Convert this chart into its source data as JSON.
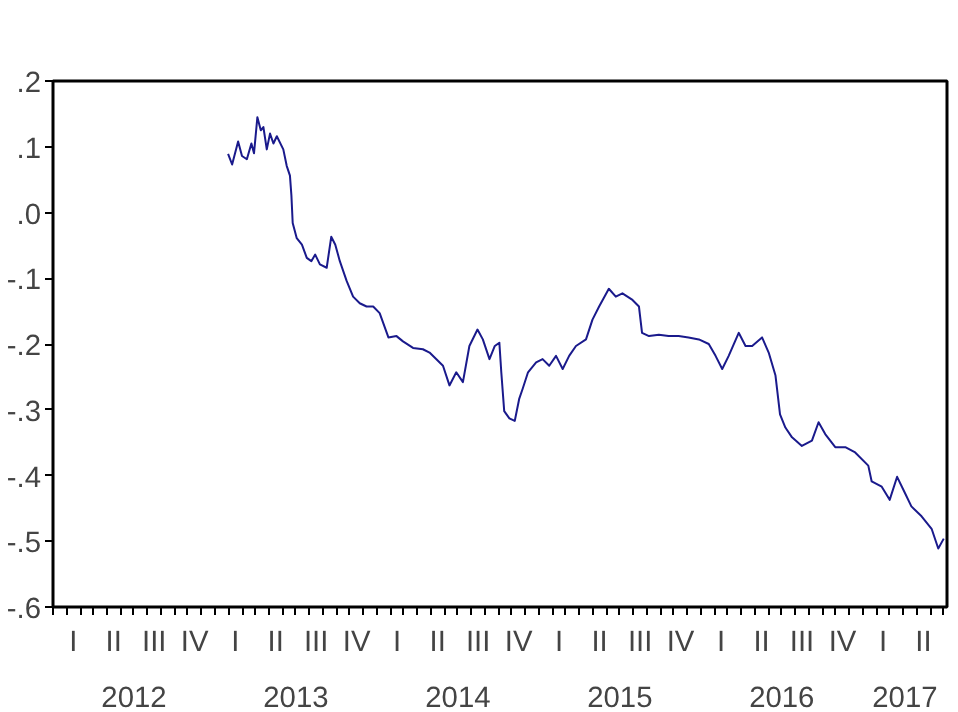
{
  "chart_data": {
    "type": "line",
    "x": [
      2013.081,
      2013.106,
      2013.143,
      2013.167,
      2013.197,
      2013.225,
      2013.241,
      2013.262,
      2013.283,
      2013.299,
      2013.32,
      2013.34,
      2013.361,
      2013.382,
      2013.422,
      2013.443,
      2013.463,
      2013.472,
      2013.48,
      2013.505,
      2013.537,
      2013.567,
      2013.595,
      2013.619,
      2013.648,
      2013.69,
      2013.718,
      2013.743,
      2013.771,
      2013.813,
      2013.853,
      2013.894,
      2013.936,
      2013.977,
      2014.017,
      2014.071,
      2014.121,
      2014.161,
      2014.223,
      2014.284,
      2014.325,
      2014.408,
      2014.448,
      2014.49,
      2014.531,
      2014.571,
      2014.621,
      2014.654,
      2014.695,
      2014.728,
      2014.756,
      2014.768,
      2014.786,
      2014.818,
      2014.851,
      2014.879,
      2014.9,
      2014.933,
      2014.983,
      2015.023,
      2015.064,
      2015.106,
      2015.147,
      2015.187,
      2015.229,
      2015.291,
      2015.331,
      2015.372,
      2015.432,
      2015.475,
      2015.516,
      2015.578,
      2015.618,
      2015.637,
      2015.68,
      2015.741,
      2015.801,
      2015.863,
      2015.924,
      2015.988,
      2016.049,
      2016.091,
      2016.132,
      2016.172,
      2016.234,
      2016.276,
      2016.317,
      2016.378,
      2016.419,
      2016.461,
      2016.489,
      2016.522,
      2016.563,
      2016.624,
      2016.686,
      2016.727,
      2016.768,
      2016.83,
      2016.892,
      2016.953,
      2017.034,
      2017.055,
      2017.117,
      2017.166,
      2017.212,
      2017.261,
      2017.3,
      2017.363,
      2017.425,
      2017.466,
      2017.5
    ],
    "series": [
      {
        "color": "#1a1a8c",
        "values": [
          0.089,
          0.073,
          0.108,
          0.086,
          0.081,
          0.105,
          0.09,
          0.145,
          0.125,
          0.13,
          0.096,
          0.12,
          0.105,
          0.116,
          0.096,
          0.071,
          0.056,
          0.026,
          -0.016,
          -0.039,
          -0.049,
          -0.069,
          -0.074,
          -0.064,
          -0.079,
          -0.084,
          -0.037,
          -0.049,
          -0.074,
          -0.104,
          -0.128,
          -0.138,
          -0.143,
          -0.143,
          -0.153,
          -0.19,
          -0.188,
          -0.196,
          -0.206,
          -0.208,
          -0.213,
          -0.233,
          -0.263,
          -0.243,
          -0.258,
          -0.203,
          -0.178,
          -0.193,
          -0.223,
          -0.203,
          -0.198,
          -0.243,
          -0.302,
          -0.313,
          -0.317,
          -0.283,
          -0.268,
          -0.243,
          -0.228,
          -0.223,
          -0.233,
          -0.218,
          -0.238,
          -0.218,
          -0.203,
          -0.193,
          -0.163,
          -0.143,
          -0.116,
          -0.128,
          -0.123,
          -0.133,
          -0.143,
          -0.183,
          -0.188,
          -0.186,
          -0.188,
          -0.188,
          -0.19,
          -0.193,
          -0.2,
          -0.218,
          -0.238,
          -0.218,
          -0.183,
          -0.203,
          -0.203,
          -0.19,
          -0.213,
          -0.248,
          -0.307,
          -0.327,
          -0.342,
          -0.355,
          -0.347,
          -0.319,
          -0.337,
          -0.357,
          -0.357,
          -0.365,
          -0.385,
          -0.409,
          -0.417,
          -0.437,
          -0.402,
          -0.427,
          -0.447,
          -0.462,
          -0.481,
          -0.511,
          -0.496
        ]
      }
    ],
    "xlim": [
      2012.0,
      2017.52
    ],
    "ylim": [
      -0.6,
      0.2
    ],
    "yticks": [
      {
        "value": 0.2,
        "label": ".2"
      },
      {
        "value": 0.1,
        "label": ".1"
      },
      {
        "value": 0.0,
        "label": ".0"
      },
      {
        "value": -0.1,
        "label": "-.1"
      },
      {
        "value": -0.2,
        "label": "-.2"
      },
      {
        "value": -0.3,
        "label": "-.3"
      },
      {
        "value": -0.4,
        "label": "-.4"
      },
      {
        "value": -0.5,
        "label": "-.5"
      },
      {
        "value": -0.6,
        "label": "-.6"
      }
    ],
    "annotations": [
      "I",
      "II",
      "III",
      "IV",
      "I",
      "II",
      "III",
      "IV",
      "I",
      "II",
      "III",
      "IV",
      "I",
      "II",
      "III",
      "IV",
      "I",
      "II",
      "III",
      "IV",
      "I",
      "II"
    ],
    "xticks": [
      {
        "value": 2012.5,
        "label": "2012"
      },
      {
        "value": 2013.5,
        "label": "2013"
      },
      {
        "value": 2014.5,
        "label": "2014"
      },
      {
        "value": 2015.5,
        "label": "2015"
      },
      {
        "value": 2016.5,
        "label": "2016"
      },
      {
        "value": 2017.26,
        "label": "2017"
      },
      {
        "value": 2012.0,
        "label": null
      },
      {
        "value": 2012.083,
        "label": null
      },
      {
        "value": 2012.167,
        "label": null
      },
      {
        "value": 2012.25,
        "label": null
      },
      {
        "value": 2012.333,
        "label": null
      },
      {
        "value": 2012.417,
        "label": null
      },
      {
        "value": 2012.5,
        "label": null
      },
      {
        "value": 2012.583,
        "label": null
      },
      {
        "value": 2012.667,
        "label": null
      },
      {
        "value": 2012.75,
        "label": null
      },
      {
        "value": 2012.833,
        "label": null
      },
      {
        "value": 2012.917,
        "label": null
      },
      {
        "value": 2013.0,
        "label": null
      },
      {
        "value": 2013.083,
        "label": null
      },
      {
        "value": 2013.167,
        "label": null
      },
      {
        "value": 2013.25,
        "label": null
      },
      {
        "value": 2013.333,
        "label": null
      },
      {
        "value": 2013.417,
        "label": null
      },
      {
        "value": 2013.5,
        "label": null
      },
      {
        "value": 2013.583,
        "label": null
      },
      {
        "value": 2013.667,
        "label": null
      },
      {
        "value": 2013.75,
        "label": null
      },
      {
        "value": 2013.833,
        "label": null
      },
      {
        "value": 2013.917,
        "label": null
      },
      {
        "value": 2014.0,
        "label": null
      },
      {
        "value": 2014.083,
        "label": null
      },
      {
        "value": 2014.167,
        "label": null
      },
      {
        "value": 2014.25,
        "label": null
      },
      {
        "value": 2014.333,
        "label": null
      },
      {
        "value": 2014.417,
        "label": null
      },
      {
        "value": 2014.5,
        "label": null
      },
      {
        "value": 2014.583,
        "label": null
      },
      {
        "value": 2014.667,
        "label": null
      },
      {
        "value": 2014.75,
        "label": null
      },
      {
        "value": 2014.833,
        "label": null
      },
      {
        "value": 2014.917,
        "label": null
      },
      {
        "value": 2015.0,
        "label": null
      },
      {
        "value": 2015.083,
        "label": null
      },
      {
        "value": 2015.167,
        "label": null
      },
      {
        "value": 2015.25,
        "label": null
      },
      {
        "value": 2015.333,
        "label": null
      },
      {
        "value": 2015.417,
        "label": null
      },
      {
        "value": 2015.5,
        "label": null
      },
      {
        "value": 2015.583,
        "label": null
      },
      {
        "value": 2015.667,
        "label": null
      },
      {
        "value": 2015.75,
        "label": null
      },
      {
        "value": 2015.833,
        "label": null
      },
      {
        "value": 2015.917,
        "label": null
      },
      {
        "value": 2016.0,
        "label": null
      },
      {
        "value": 2016.083,
        "label": null
      },
      {
        "value": 2016.167,
        "label": null
      },
      {
        "value": 2016.25,
        "label": null
      },
      {
        "value": 2016.333,
        "label": null
      },
      {
        "value": 2016.417,
        "label": null
      },
      {
        "value": 2016.5,
        "label": null
      },
      {
        "value": 2016.583,
        "label": null
      },
      {
        "value": 2016.667,
        "label": null
      },
      {
        "value": 2016.75,
        "label": null
      },
      {
        "value": 2016.833,
        "label": null
      },
      {
        "value": 2016.917,
        "label": null
      },
      {
        "value": 2017.0,
        "label": null
      },
      {
        "value": 2017.083,
        "label": null
      },
      {
        "value": 2017.167,
        "label": null
      },
      {
        "value": 2017.25,
        "label": null
      },
      {
        "value": 2017.333,
        "label": null
      },
      {
        "value": 2017.417,
        "label": null
      },
      {
        "value": 2017.5,
        "label": null
      }
    ],
    "grid": false,
    "line_style": "solid"
  }
}
